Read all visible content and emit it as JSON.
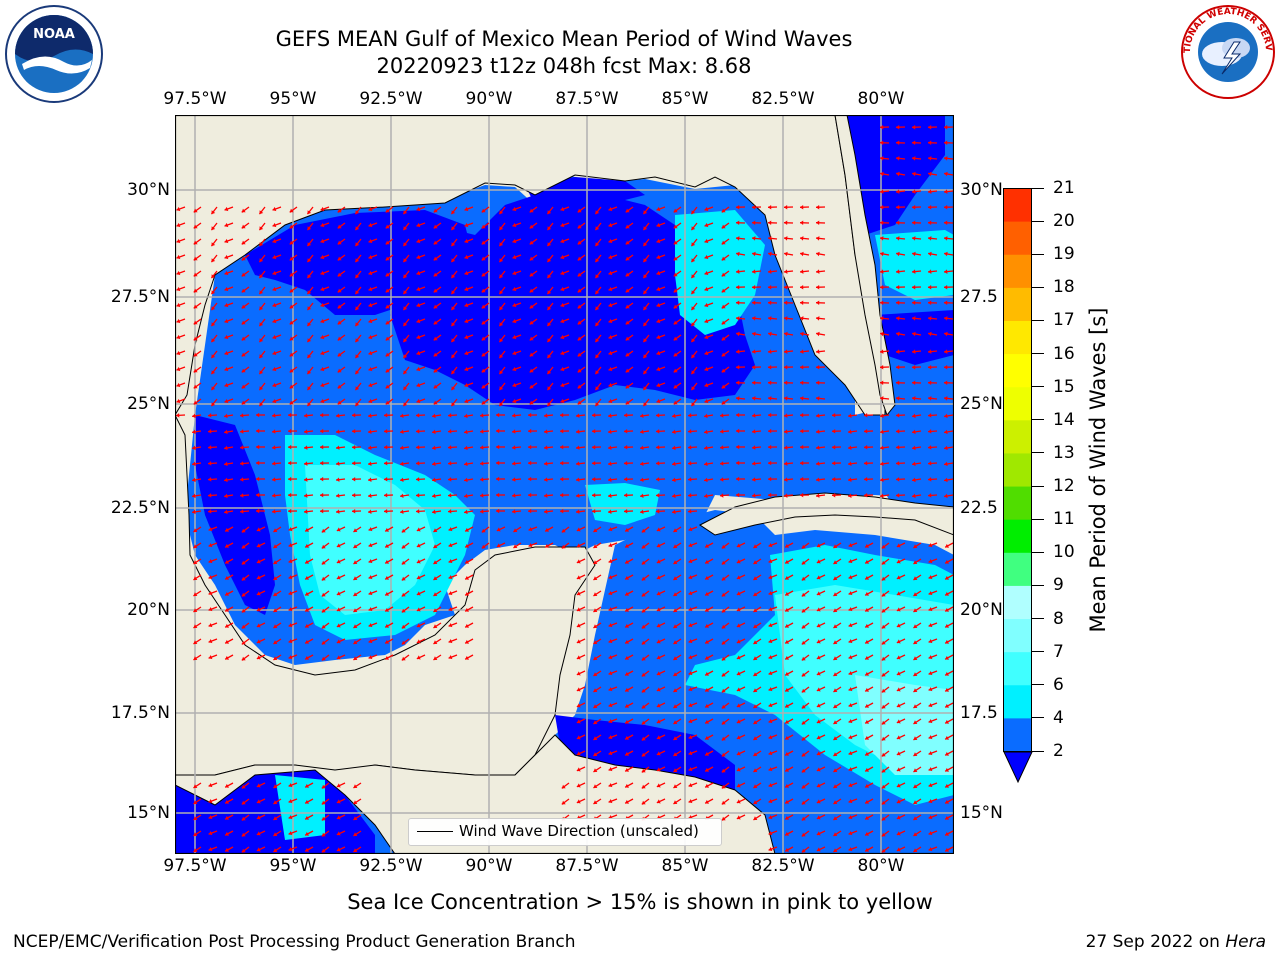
{
  "title": {
    "line1": "GEFS MEAN Gulf of Mexico Mean Period of Wind Waves",
    "line2": "20220923 t12z 048h fcst   Max: 8.68"
  },
  "map": {
    "lon_labels": [
      "97.5°W",
      "95°W",
      "92.5°W",
      "90°W",
      "87.5°W",
      "85°W",
      "82.5°W",
      "80°W"
    ],
    "lat_labels_left": [
      "30°N",
      "27.5°N",
      "25°N",
      "22.5°N",
      "20°N",
      "17.5°N",
      "15°N"
    ],
    "lat_labels_right": [
      "30°N",
      "27.5",
      "25°N",
      "22.5",
      "20°N",
      "17.5",
      "15°N"
    ],
    "land_color": "#efedde",
    "arrow_color": "#ff0000",
    "legend_label": "Wind Wave Direction (unscaled)"
  },
  "colorbar": {
    "label": "Mean Period of Wind Waves [s]",
    "ticks": [
      "2",
      "4",
      "6",
      "7",
      "8",
      "9",
      "10",
      "11",
      "12",
      "13",
      "14",
      "15",
      "16",
      "17",
      "18",
      "19",
      "20",
      "21"
    ],
    "colors": [
      "#0a6cff",
      "#00f0ff",
      "#40ffff",
      "#80ffff",
      "#b0ffff",
      "#40ff80",
      "#00ee00",
      "#50dd00",
      "#a0e800",
      "#ccf000",
      "#eeff00",
      "#ffff00",
      "#ffe800",
      "#ffbb00",
      "#ff9000",
      "#ff6000",
      "#ff3000",
      "#ff0000"
    ],
    "extend_color": "#0000ff"
  },
  "logos": {
    "left_text": "NOAA",
    "right_text": "NATIONAL WEATHER SERVICE"
  },
  "annotation": "Sea Ice Concentration > 15% is shown in pink to yellow",
  "footer": {
    "left": "NCEP/EMC/Verification Post Processing Product Generation Branch",
    "date": "27 Sep 2022 on ",
    "host": "Hera"
  }
}
